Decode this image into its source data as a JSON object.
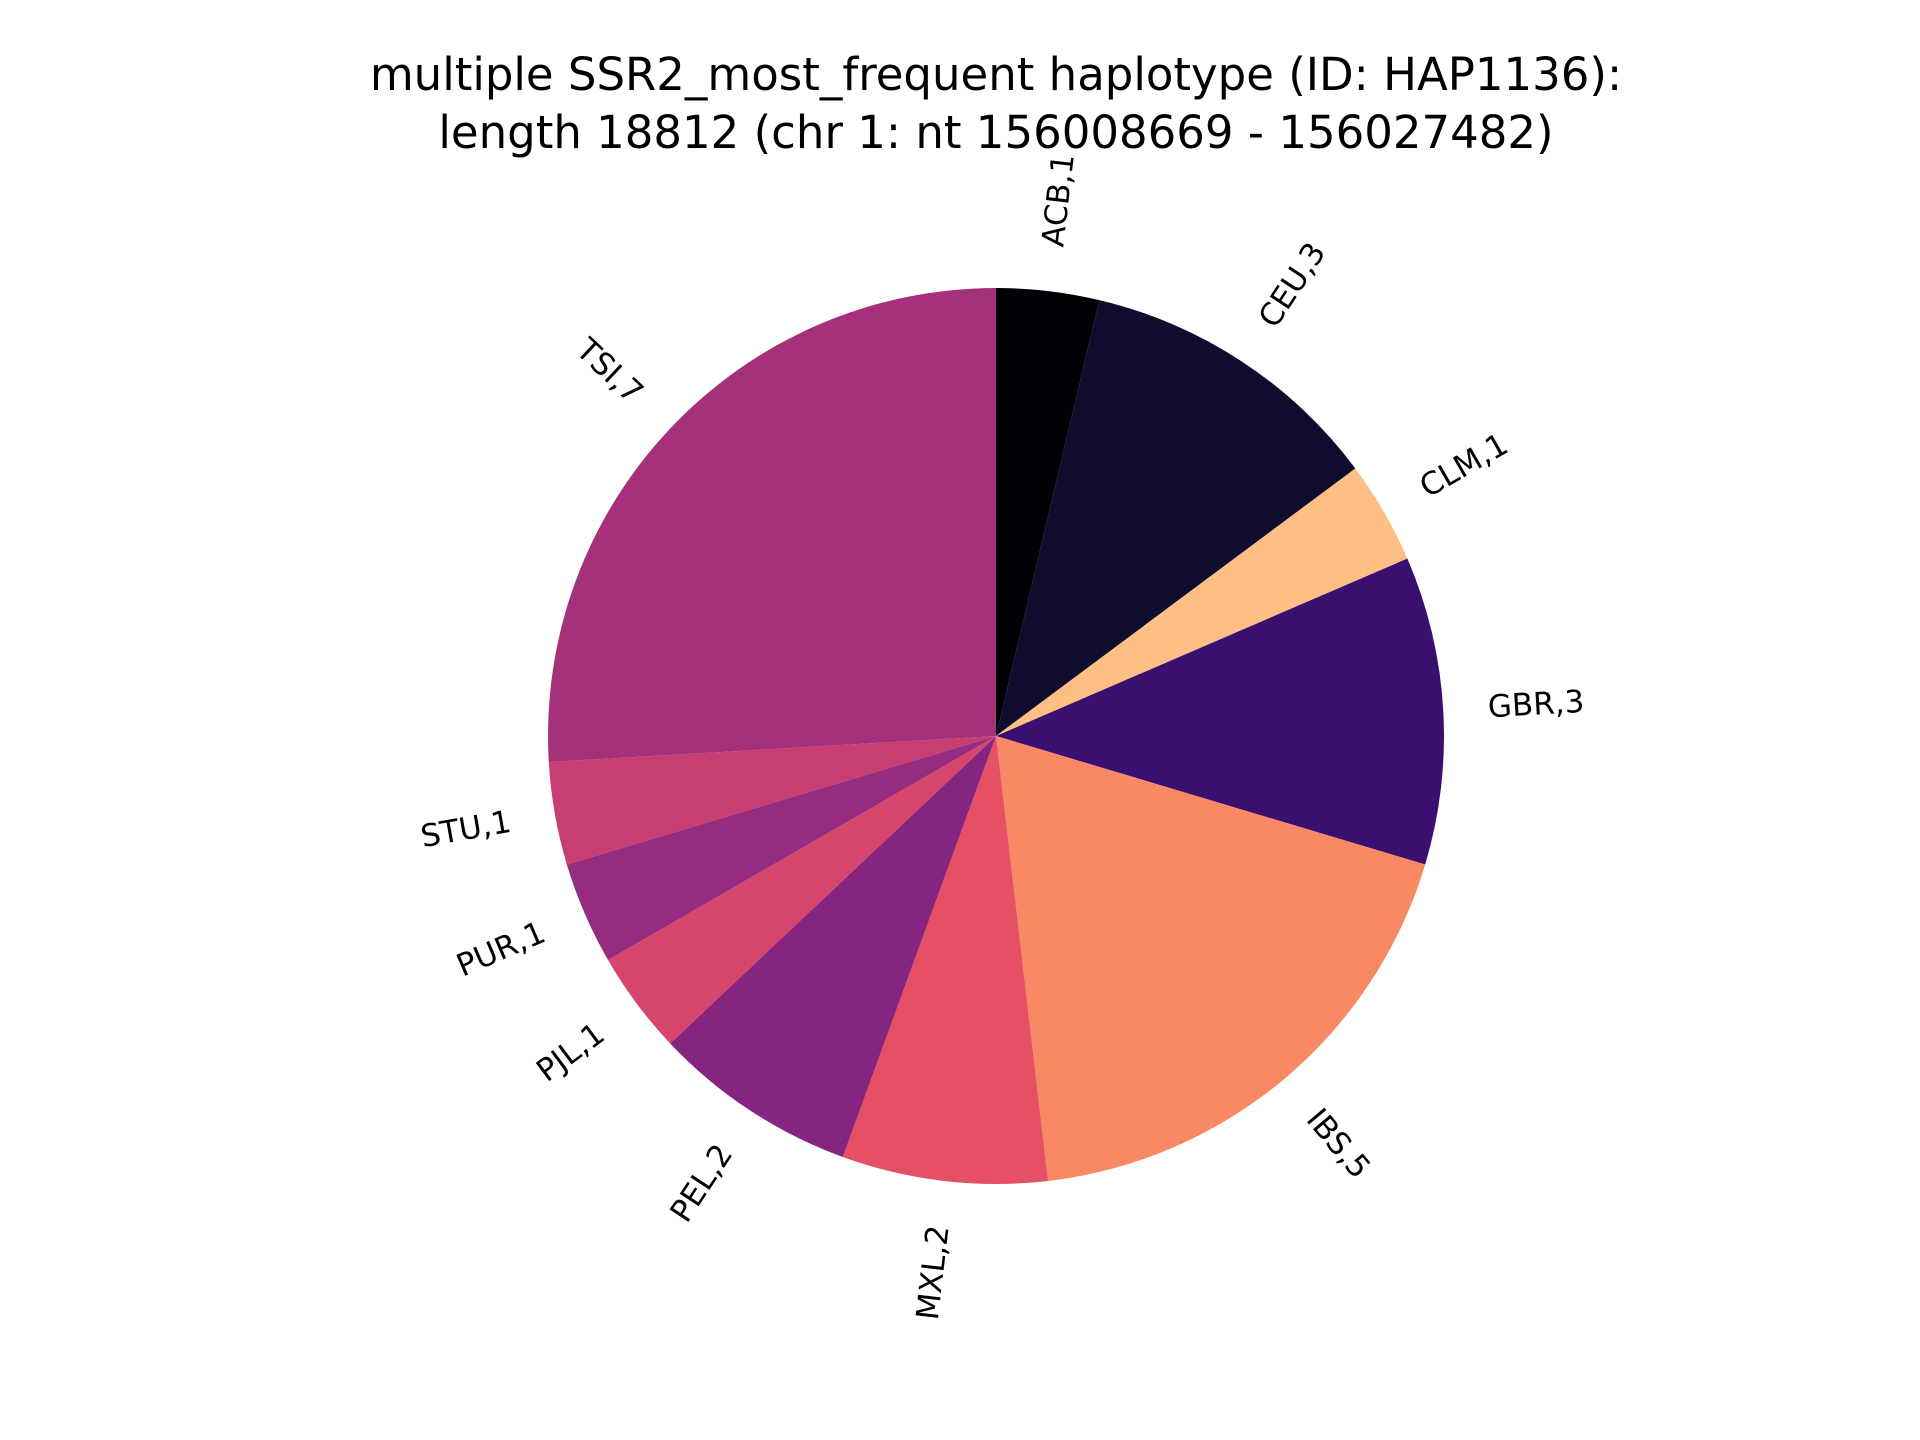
{
  "chart_data": {
    "type": "pie",
    "title_lines": [
      "multiple SSR2_most_frequent haplotype (ID: HAP1136):",
      "length 18812 (chr 1: nt 156008669 - 156027482)"
    ],
    "start_angle_deg": 90,
    "direction": "clockwise",
    "slices": [
      {
        "label": "ACB,1",
        "value": 1,
        "color": "#010005"
      },
      {
        "label": "CEU,3",
        "value": 3,
        "color": "#100c2e"
      },
      {
        "label": "CLM,1",
        "value": 1,
        "color": "#febf84"
      },
      {
        "label": "GBR,3",
        "value": 3,
        "color": "#3b0f6f"
      },
      {
        "label": "IBS,5",
        "value": 5,
        "color": "#f98865"
      },
      {
        "label": "MXL,2",
        "value": 2,
        "color": "#e55064"
      },
      {
        "label": "PEL,2",
        "value": 2,
        "color": "#85257f"
      },
      {
        "label": "PJL,1",
        "value": 1,
        "color": "#d6456c"
      },
      {
        "label": "PUR,1",
        "value": 1,
        "color": "#952c80"
      },
      {
        "label": "STU,1",
        "value": 1,
        "color": "#c83e73"
      },
      {
        "label": "TSI,7",
        "value": 7,
        "color": "#a5317b"
      }
    ]
  }
}
